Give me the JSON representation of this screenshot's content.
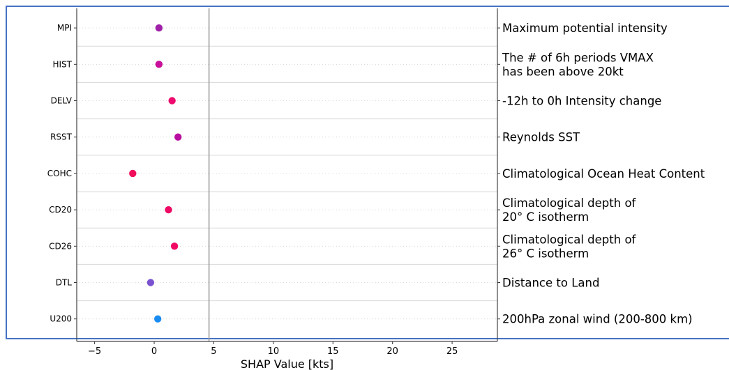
{
  "chart_data": {
    "type": "scatter",
    "xlabel": "SHAP Value [kts]",
    "xlim": [
      -6.5,
      28.8
    ],
    "xticks": [
      -5,
      0,
      5,
      10,
      15,
      20,
      25
    ],
    "xtick_labels": [
      "−5",
      "0",
      "5",
      "10",
      "15",
      "20",
      "25"
    ],
    "reference_line_x": 4.6,
    "grid": "horizontal dotted",
    "features": [
      {
        "name": "MPI",
        "value": 0.4,
        "color": "#a020a8",
        "description": [
          "Maximum potential intensity"
        ]
      },
      {
        "name": "HIST",
        "value": 0.4,
        "color": "#c8109a",
        "description": [
          "The # of 6h periods VMAX",
          "has been above 20kt"
        ]
      },
      {
        "name": "DELV",
        "value": 1.5,
        "color": "#ee0a6e",
        "description": [
          "-12h to 0h Intensity change"
        ]
      },
      {
        "name": "RSST",
        "value": 2.0,
        "color": "#b80ea0",
        "description": [
          "Reynolds SST"
        ]
      },
      {
        "name": "COHC",
        "value": -1.8,
        "color": "#f0105a",
        "description": [
          "Climatological Ocean Heat Content"
        ]
      },
      {
        "name": "CD20",
        "value": 1.2,
        "color": "#ee0a64",
        "description": [
          "Climatological depth of",
          "20° C isotherm"
        ]
      },
      {
        "name": "CD26",
        "value": 1.7,
        "color": "#f00a64",
        "description": [
          "Climatological depth of",
          "26° C isotherm"
        ]
      },
      {
        "name": "DTL",
        "value": -0.3,
        "color": "#7a52d0",
        "description": [
          "Distance to Land"
        ]
      },
      {
        "name": "U200",
        "value": 0.3,
        "color": "#1a8cf0",
        "description": [
          "200hPa zonal wind (200-800 km)"
        ]
      }
    ]
  }
}
